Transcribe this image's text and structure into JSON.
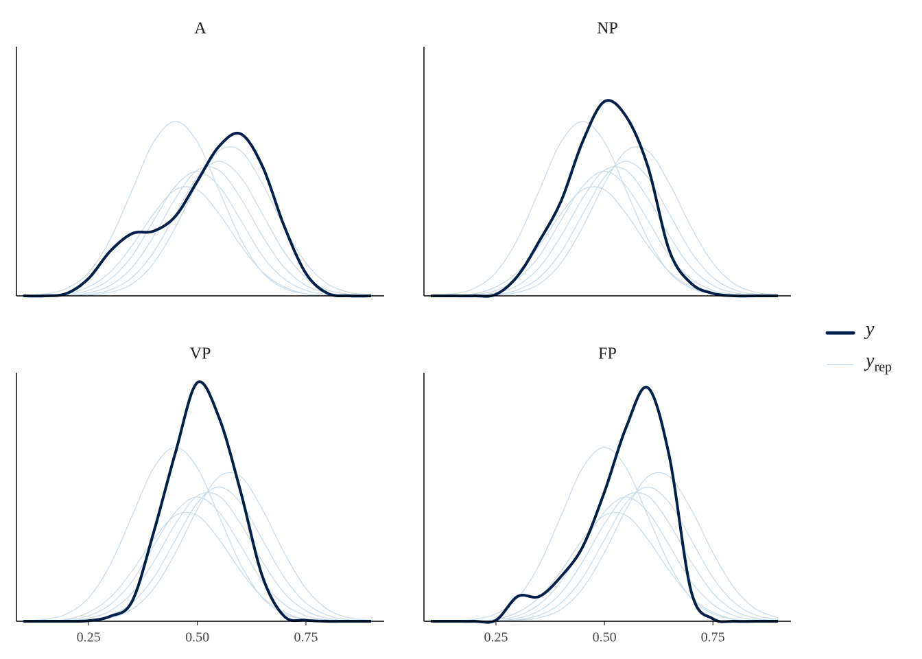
{
  "chart_data": [
    {
      "type": "line",
      "title": "A",
      "x": [
        0.1,
        0.15,
        0.2,
        0.25,
        0.3,
        0.35,
        0.4,
        0.45,
        0.5,
        0.55,
        0.6,
        0.65,
        0.7,
        0.75,
        0.8,
        0.85,
        0.9
      ],
      "xlim": [
        0.084,
        0.93
      ],
      "ylim": [
        0,
        5
      ],
      "series": [
        {
          "role": "yrep",
          "color": "#c6d9e8",
          "values": [
            0,
            0.01,
            0.03,
            0.11,
            0.34,
            0.8,
            1.52,
            2.2,
            2.5,
            2.2,
            1.52,
            0.8,
            0.34,
            0.11,
            0.03,
            0.01,
            0
          ]
        },
        {
          "role": "yrep",
          "color": "#c6d9e8",
          "values": [
            0,
            0,
            0.01,
            0.03,
            0.12,
            0.37,
            0.88,
            1.64,
            2.38,
            2.7,
            2.38,
            1.64,
            0.88,
            0.37,
            0.12,
            0.03,
            0.01
          ]
        },
        {
          "role": "yrep",
          "color": "#c6d9e8",
          "values": [
            0.01,
            0.04,
            0.15,
            0.47,
            1.14,
            2.12,
            3.09,
            3.5,
            3.09,
            2.12,
            1.14,
            0.47,
            0.15,
            0.04,
            0.01,
            0,
            0
          ]
        },
        {
          "role": "yrep",
          "color": "#c6d9e8",
          "values": [
            0,
            0,
            0.01,
            0.06,
            0.21,
            0.57,
            1.2,
            1.96,
            2.52,
            2.52,
            1.96,
            1.2,
            0.57,
            0.21,
            0.06,
            0.01,
            0
          ]
        },
        {
          "role": "yrep",
          "color": "#c6d9e8",
          "values": [
            0,
            0,
            0,
            0.02,
            0.07,
            0.24,
            0.66,
            1.38,
            2.25,
            2.91,
            2.91,
            2.25,
            1.38,
            0.66,
            0.24,
            0.07,
            0.02
          ]
        },
        {
          "role": "yrep",
          "color": "#c6d9e8",
          "values": [
            0,
            0.01,
            0.04,
            0.18,
            0.48,
            1.01,
            1.65,
            2.13,
            2.13,
            1.65,
            1.01,
            0.48,
            0.18,
            0.04,
            0.01,
            0,
            0
          ]
        },
        {
          "role": "y",
          "color": "#011f4b",
          "values": [
            0,
            0,
            0.05,
            0.35,
            0.9,
            1.25,
            1.3,
            1.6,
            2.3,
            3.0,
            3.25,
            2.6,
            1.4,
            0.45,
            0.05,
            0,
            0
          ]
        }
      ]
    },
    {
      "type": "line",
      "title": "NP",
      "x": [
        0.1,
        0.15,
        0.2,
        0.25,
        0.3,
        0.35,
        0.4,
        0.45,
        0.5,
        0.55,
        0.6,
        0.65,
        0.7,
        0.75,
        0.8,
        0.85,
        0.9
      ],
      "xlim": [
        0.084,
        0.93
      ],
      "ylim": [
        0,
        5
      ],
      "series": [
        {
          "role": "yrep",
          "color": "#c6d9e8",
          "values": [
            0,
            0.01,
            0.04,
            0.18,
            0.48,
            1.01,
            1.65,
            2.13,
            2.13,
            1.65,
            1.01,
            0.48,
            0.18,
            0.04,
            0.01,
            0,
            0
          ]
        },
        {
          "role": "yrep",
          "color": "#c6d9e8",
          "values": [
            0,
            0.01,
            0.03,
            0.11,
            0.34,
            0.8,
            1.52,
            2.2,
            2.5,
            2.2,
            1.52,
            0.8,
            0.34,
            0.11,
            0.03,
            0.01,
            0
          ]
        },
        {
          "role": "yrep",
          "color": "#c6d9e8",
          "values": [
            0.01,
            0.04,
            0.15,
            0.47,
            1.14,
            2.12,
            3.09,
            3.5,
            3.09,
            2.12,
            1.14,
            0.47,
            0.15,
            0.04,
            0.01,
            0,
            0
          ]
        },
        {
          "role": "yrep",
          "color": "#c6d9e8",
          "values": [
            0,
            0,
            0.01,
            0.06,
            0.21,
            0.57,
            1.2,
            1.96,
            2.52,
            2.52,
            1.96,
            1.2,
            0.57,
            0.21,
            0.06,
            0.01,
            0
          ]
        },
        {
          "role": "yrep",
          "color": "#c6d9e8",
          "values": [
            0,
            0,
            0,
            0.02,
            0.07,
            0.24,
            0.66,
            1.38,
            2.25,
            2.91,
            2.91,
            2.25,
            1.38,
            0.66,
            0.24,
            0.07,
            0.02
          ]
        },
        {
          "role": "yrep",
          "color": "#c6d9e8",
          "values": [
            0,
            0,
            0.01,
            0.03,
            0.12,
            0.37,
            0.88,
            1.64,
            2.38,
            2.7,
            2.38,
            1.64,
            0.88,
            0.37,
            0.12,
            0.03,
            0.01
          ]
        },
        {
          "role": "y",
          "color": "#011f4b",
          "values": [
            0,
            0,
            0,
            0.03,
            0.4,
            1.1,
            1.9,
            3.1,
            3.9,
            3.6,
            2.6,
            0.9,
            0.25,
            0.05,
            0,
            0,
            0
          ]
        }
      ]
    },
    {
      "type": "line",
      "title": "VP",
      "x": [
        0.1,
        0.15,
        0.2,
        0.25,
        0.3,
        0.35,
        0.4,
        0.45,
        0.5,
        0.55,
        0.6,
        0.65,
        0.7,
        0.75,
        0.8,
        0.85,
        0.9
      ],
      "xlim": [
        0.084,
        0.93
      ],
      "ylim": [
        0,
        5
      ],
      "xticks": [
        0.25,
        {
          "value": 0.5,
          "label": "0.50"
        },
        0.75
      ],
      "series": [
        {
          "role": "yrep",
          "color": "#c6d9e8",
          "values": [
            0,
            0,
            0.01,
            0.06,
            0.21,
            0.57,
            1.2,
            1.96,
            2.52,
            2.52,
            1.96,
            1.2,
            0.57,
            0.21,
            0.06,
            0.01,
            0
          ]
        },
        {
          "role": "yrep",
          "color": "#c6d9e8",
          "values": [
            0,
            0.01,
            0.03,
            0.11,
            0.34,
            0.8,
            1.52,
            2.2,
            2.5,
            2.2,
            1.52,
            0.8,
            0.34,
            0.11,
            0.03,
            0.01,
            0
          ]
        },
        {
          "role": "yrep",
          "color": "#c6d9e8",
          "values": [
            0.01,
            0.04,
            0.15,
            0.47,
            1.14,
            2.12,
            3.09,
            3.5,
            3.09,
            2.12,
            1.14,
            0.47,
            0.15,
            0.04,
            0.01,
            0,
            0
          ]
        },
        {
          "role": "yrep",
          "color": "#c6d9e8",
          "values": [
            0,
            0,
            0.01,
            0.03,
            0.12,
            0.37,
            0.88,
            1.64,
            2.38,
            2.7,
            2.38,
            1.64,
            0.88,
            0.37,
            0.12,
            0.03,
            0.01
          ]
        },
        {
          "role": "yrep",
          "color": "#c6d9e8",
          "values": [
            0,
            0.01,
            0.04,
            0.18,
            0.48,
            1.01,
            1.65,
            2.13,
            2.13,
            1.65,
            1.01,
            0.48,
            0.18,
            0.04,
            0.01,
            0,
            0
          ]
        },
        {
          "role": "yrep",
          "color": "#c6d9e8",
          "values": [
            0,
            0,
            0,
            0.02,
            0.07,
            0.24,
            0.66,
            1.38,
            2.25,
            2.91,
            2.91,
            2.25,
            1.38,
            0.66,
            0.24,
            0.07,
            0.02
          ]
        },
        {
          "role": "y",
          "color": "#011f4b",
          "values": [
            0,
            0,
            0,
            0.01,
            0.1,
            0.4,
            1.8,
            3.4,
            4.8,
            4.1,
            2.6,
            0.9,
            0.1,
            0.02,
            0,
            0,
            0
          ]
        }
      ]
    },
    {
      "type": "line",
      "title": "FP",
      "x": [
        0.1,
        0.15,
        0.2,
        0.25,
        0.3,
        0.35,
        0.4,
        0.45,
        0.5,
        0.55,
        0.6,
        0.65,
        0.7,
        0.75,
        0.8,
        0.85,
        0.9
      ],
      "xlim": [
        0.084,
        0.93
      ],
      "ylim": [
        0,
        5
      ],
      "xticks": [
        0.25,
        {
          "value": 0.5,
          "label": "0.50"
        },
        0.75
      ],
      "series": [
        {
          "role": "yrep",
          "color": "#c6d9e8",
          "values": [
            0,
            0,
            0.01,
            0.03,
            0.11,
            0.34,
            0.8,
            1.52,
            2.2,
            2.5,
            2.2,
            1.52,
            0.8,
            0.34,
            0.11,
            0.03,
            0.01
          ]
        },
        {
          "role": "yrep",
          "color": "#c6d9e8",
          "values": [
            0,
            0,
            0,
            0.01,
            0.03,
            0.12,
            0.37,
            0.88,
            1.64,
            2.38,
            2.7,
            2.38,
            1.64,
            0.88,
            0.37,
            0.12,
            0.03
          ]
        },
        {
          "role": "yrep",
          "color": "#c6d9e8",
          "values": [
            0,
            0.01,
            0.04,
            0.15,
            0.47,
            1.14,
            2.12,
            3.09,
            3.5,
            3.09,
            2.12,
            1.14,
            0.47,
            0.15,
            0.04,
            0.01,
            0
          ]
        },
        {
          "role": "yrep",
          "color": "#c6d9e8",
          "values": [
            0,
            0,
            0,
            0.01,
            0.06,
            0.21,
            0.57,
            1.2,
            1.96,
            2.52,
            2.52,
            1.96,
            1.2,
            0.57,
            0.21,
            0.06,
            0.01
          ]
        },
        {
          "role": "yrep",
          "color": "#c6d9e8",
          "values": [
            0,
            0,
            0.01,
            0.04,
            0.18,
            0.48,
            1.01,
            1.65,
            2.13,
            2.13,
            1.65,
            1.01,
            0.48,
            0.18,
            0.04,
            0.01,
            0
          ]
        },
        {
          "role": "yrep",
          "color": "#c6d9e8",
          "values": [
            0,
            0,
            0,
            0,
            0.02,
            0.07,
            0.24,
            0.66,
            1.38,
            2.25,
            2.91,
            2.91,
            2.25,
            1.38,
            0.66,
            0.24,
            0.07
          ]
        },
        {
          "role": "y",
          "color": "#011f4b",
          "values": [
            0,
            0,
            0,
            0.02,
            0.5,
            0.5,
            0.9,
            1.5,
            2.6,
            3.9,
            4.7,
            3.3,
            0.6,
            0.05,
            0,
            0,
            0
          ]
        }
      ]
    }
  ],
  "legend": [
    {
      "label": "y",
      "color": "#011f4b",
      "role": "y"
    },
    {
      "label": "y",
      "subscript": "rep",
      "color": "#c6d9e8",
      "role": "yrep"
    }
  ]
}
